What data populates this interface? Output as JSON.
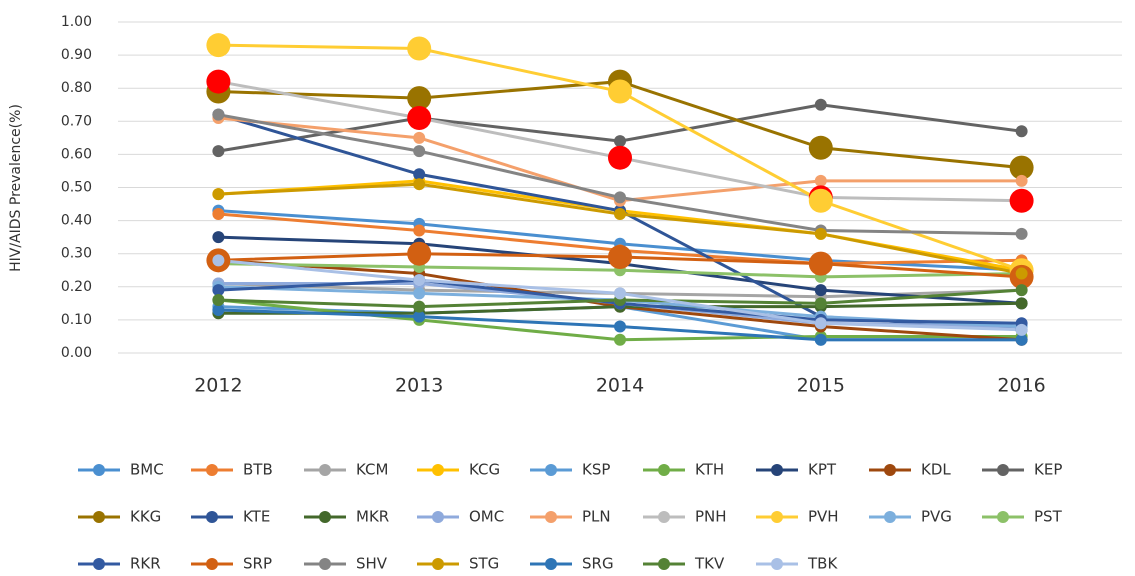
{
  "chart_data": {
    "type": "line",
    "y_label": "HIV/AIDS Prevalence(%)",
    "categories": [
      "2012",
      "2013",
      "2014",
      "2015",
      "2016"
    ],
    "ylim": [
      0,
      1
    ],
    "yticks": [
      {
        "value": 0,
        "label": "0.00"
      },
      {
        "value": 0.1,
        "label": "0.10"
      },
      {
        "value": 0.2,
        "label": "0.20"
      },
      {
        "value": 0.3,
        "label": "0.30"
      },
      {
        "value": 0.4,
        "label": "0.40"
      },
      {
        "value": 0.5,
        "label": "0.50"
      },
      {
        "value": 0.6,
        "label": "0.60"
      },
      {
        "value": 0.7,
        "label": "0.70"
      },
      {
        "value": 0.8,
        "label": "0.80"
      },
      {
        "value": 0.9,
        "label": "0.90"
      },
      {
        "value": 1,
        "label": "1.00"
      }
    ],
    "grid": true,
    "legend": "bottom",
    "series": [
      {
        "name": "BMC",
        "color": "#4a8fd0",
        "values": [
          0.43,
          0.39,
          0.33,
          0.28,
          0.25
        ]
      },
      {
        "name": "BTB",
        "color": "#ed7d31",
        "values": [
          0.42,
          0.37,
          0.31,
          0.27,
          0.28
        ]
      },
      {
        "name": "KCM",
        "color": "#a5a5a5",
        "values": [
          0.21,
          0.19,
          0.18,
          0.17,
          0.19
        ]
      },
      {
        "name": "KCG",
        "color": "#ffc000",
        "values": [
          0.48,
          0.52,
          0.43,
          0.36,
          0.25
        ]
      },
      {
        "name": "KSP",
        "color": "#5b9bd5",
        "values": [
          0.14,
          0.12,
          0.14,
          0.04,
          0.04
        ]
      },
      {
        "name": "KTH",
        "color": "#70ad47",
        "values": [
          0.16,
          0.1,
          0.04,
          0.05,
          0.05
        ]
      },
      {
        "name": "KPT",
        "color": "#264478",
        "values": [
          0.35,
          0.33,
          0.27,
          0.19,
          0.15
        ]
      },
      {
        "name": "KDL",
        "color": "#9e480e",
        "values": [
          0.28,
          0.24,
          0.14,
          0.08,
          0.04
        ]
      },
      {
        "name": "KEP",
        "color": "#636363",
        "values": [
          0.61,
          0.71,
          0.64,
          0.75,
          0.67
        ]
      },
      {
        "name": "KKG",
        "color": "#997300",
        "values": [
          0.79,
          0.77,
          0.82,
          0.62,
          0.56
        ],
        "marker": "large"
      },
      {
        "name": "KTE",
        "color": "#2f5597",
        "values": [
          0.72,
          0.54,
          0.43,
          0.11,
          0.07
        ]
      },
      {
        "name": "MKR",
        "color": "#43682b",
        "values": [
          0.12,
          0.12,
          0.14,
          0.14,
          0.15
        ]
      },
      {
        "name": "OMC",
        "color": "#8faadc",
        "values": [
          0.21,
          0.21,
          0.15,
          0.09,
          0.08
        ]
      },
      {
        "name": "PLN",
        "color": "#f4a06b",
        "values": [
          0.71,
          0.65,
          0.46,
          0.52,
          0.52
        ]
      },
      {
        "name": "PNH",
        "color": "#bdbdbd",
        "values": [
          0.82,
          0.71,
          0.59,
          0.47,
          0.46
        ],
        "marker": "large",
        "marker_color": "#ff0000"
      },
      {
        "name": "PVH",
        "color": "#ffcd33",
        "values": [
          0.93,
          0.92,
          0.79,
          0.46,
          0.25
        ],
        "marker": "large"
      },
      {
        "name": "PVG",
        "color": "#7cafdd",
        "values": [
          0.2,
          0.18,
          0.16,
          0.11,
          0.08
        ]
      },
      {
        "name": "PST",
        "color": "#8cc168",
        "values": [
          0.27,
          0.26,
          0.25,
          0.23,
          0.24
        ]
      },
      {
        "name": "RKR",
        "color": "#335aa1",
        "values": [
          0.19,
          0.22,
          0.15,
          0.1,
          0.09
        ]
      },
      {
        "name": "SRP",
        "color": "#d26012",
        "values": [
          0.28,
          0.3,
          0.29,
          0.27,
          0.23
        ],
        "marker": "large"
      },
      {
        "name": "SHV",
        "color": "#848484",
        "values": [
          0.72,
          0.61,
          0.47,
          0.37,
          0.36
        ]
      },
      {
        "name": "STG",
        "color": "#cc9a00",
        "values": [
          0.48,
          0.51,
          0.42,
          0.36,
          0.24
        ]
      },
      {
        "name": "SRG",
        "color": "#2e75b6",
        "values": [
          0.13,
          0.11,
          0.08,
          0.04,
          0.04
        ]
      },
      {
        "name": "TKV",
        "color": "#548235",
        "values": [
          0.16,
          0.14,
          0.16,
          0.15,
          0.19
        ]
      },
      {
        "name": "TBK",
        "color": "#a9c0e6",
        "values": [
          0.28,
          0.22,
          0.18,
          0.09,
          0.07
        ]
      }
    ]
  }
}
